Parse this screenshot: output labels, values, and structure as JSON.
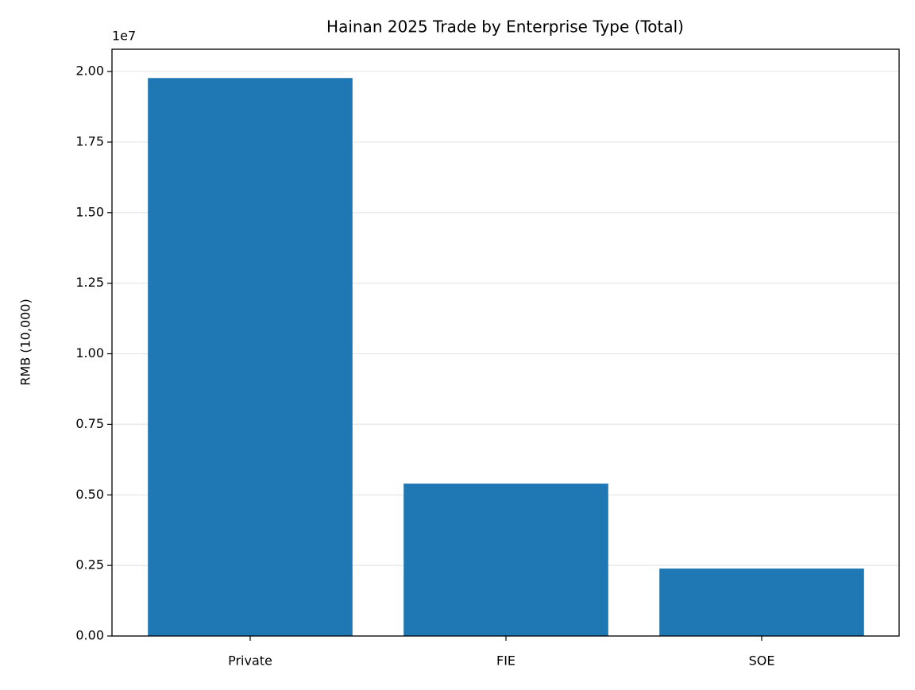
{
  "chart_data": {
    "type": "bar",
    "title": "Hainan 2025 Trade by Enterprise Type (Total)",
    "y_label": "RMB (10,000)",
    "y_offset_label": "1e7",
    "categories": [
      "Private",
      "FIE",
      "SOE"
    ],
    "values": [
      19770000,
      5400000,
      2390000
    ],
    "color": "#1f77b4",
    "ylim": [
      0,
      20790000
    ],
    "yticks": [
      {
        "value": 0,
        "label": "0.00"
      },
      {
        "value": 2500000,
        "label": "0.25"
      },
      {
        "value": 5000000,
        "label": "0.50"
      },
      {
        "value": 7500000,
        "label": "0.75"
      },
      {
        "value": 10000000,
        "label": "1.00"
      },
      {
        "value": 12500000,
        "label": "1.25"
      },
      {
        "value": 15000000,
        "label": "1.50"
      },
      {
        "value": 17500000,
        "label": "1.75"
      },
      {
        "value": 20000000,
        "label": "2.00"
      }
    ],
    "grid": true
  }
}
